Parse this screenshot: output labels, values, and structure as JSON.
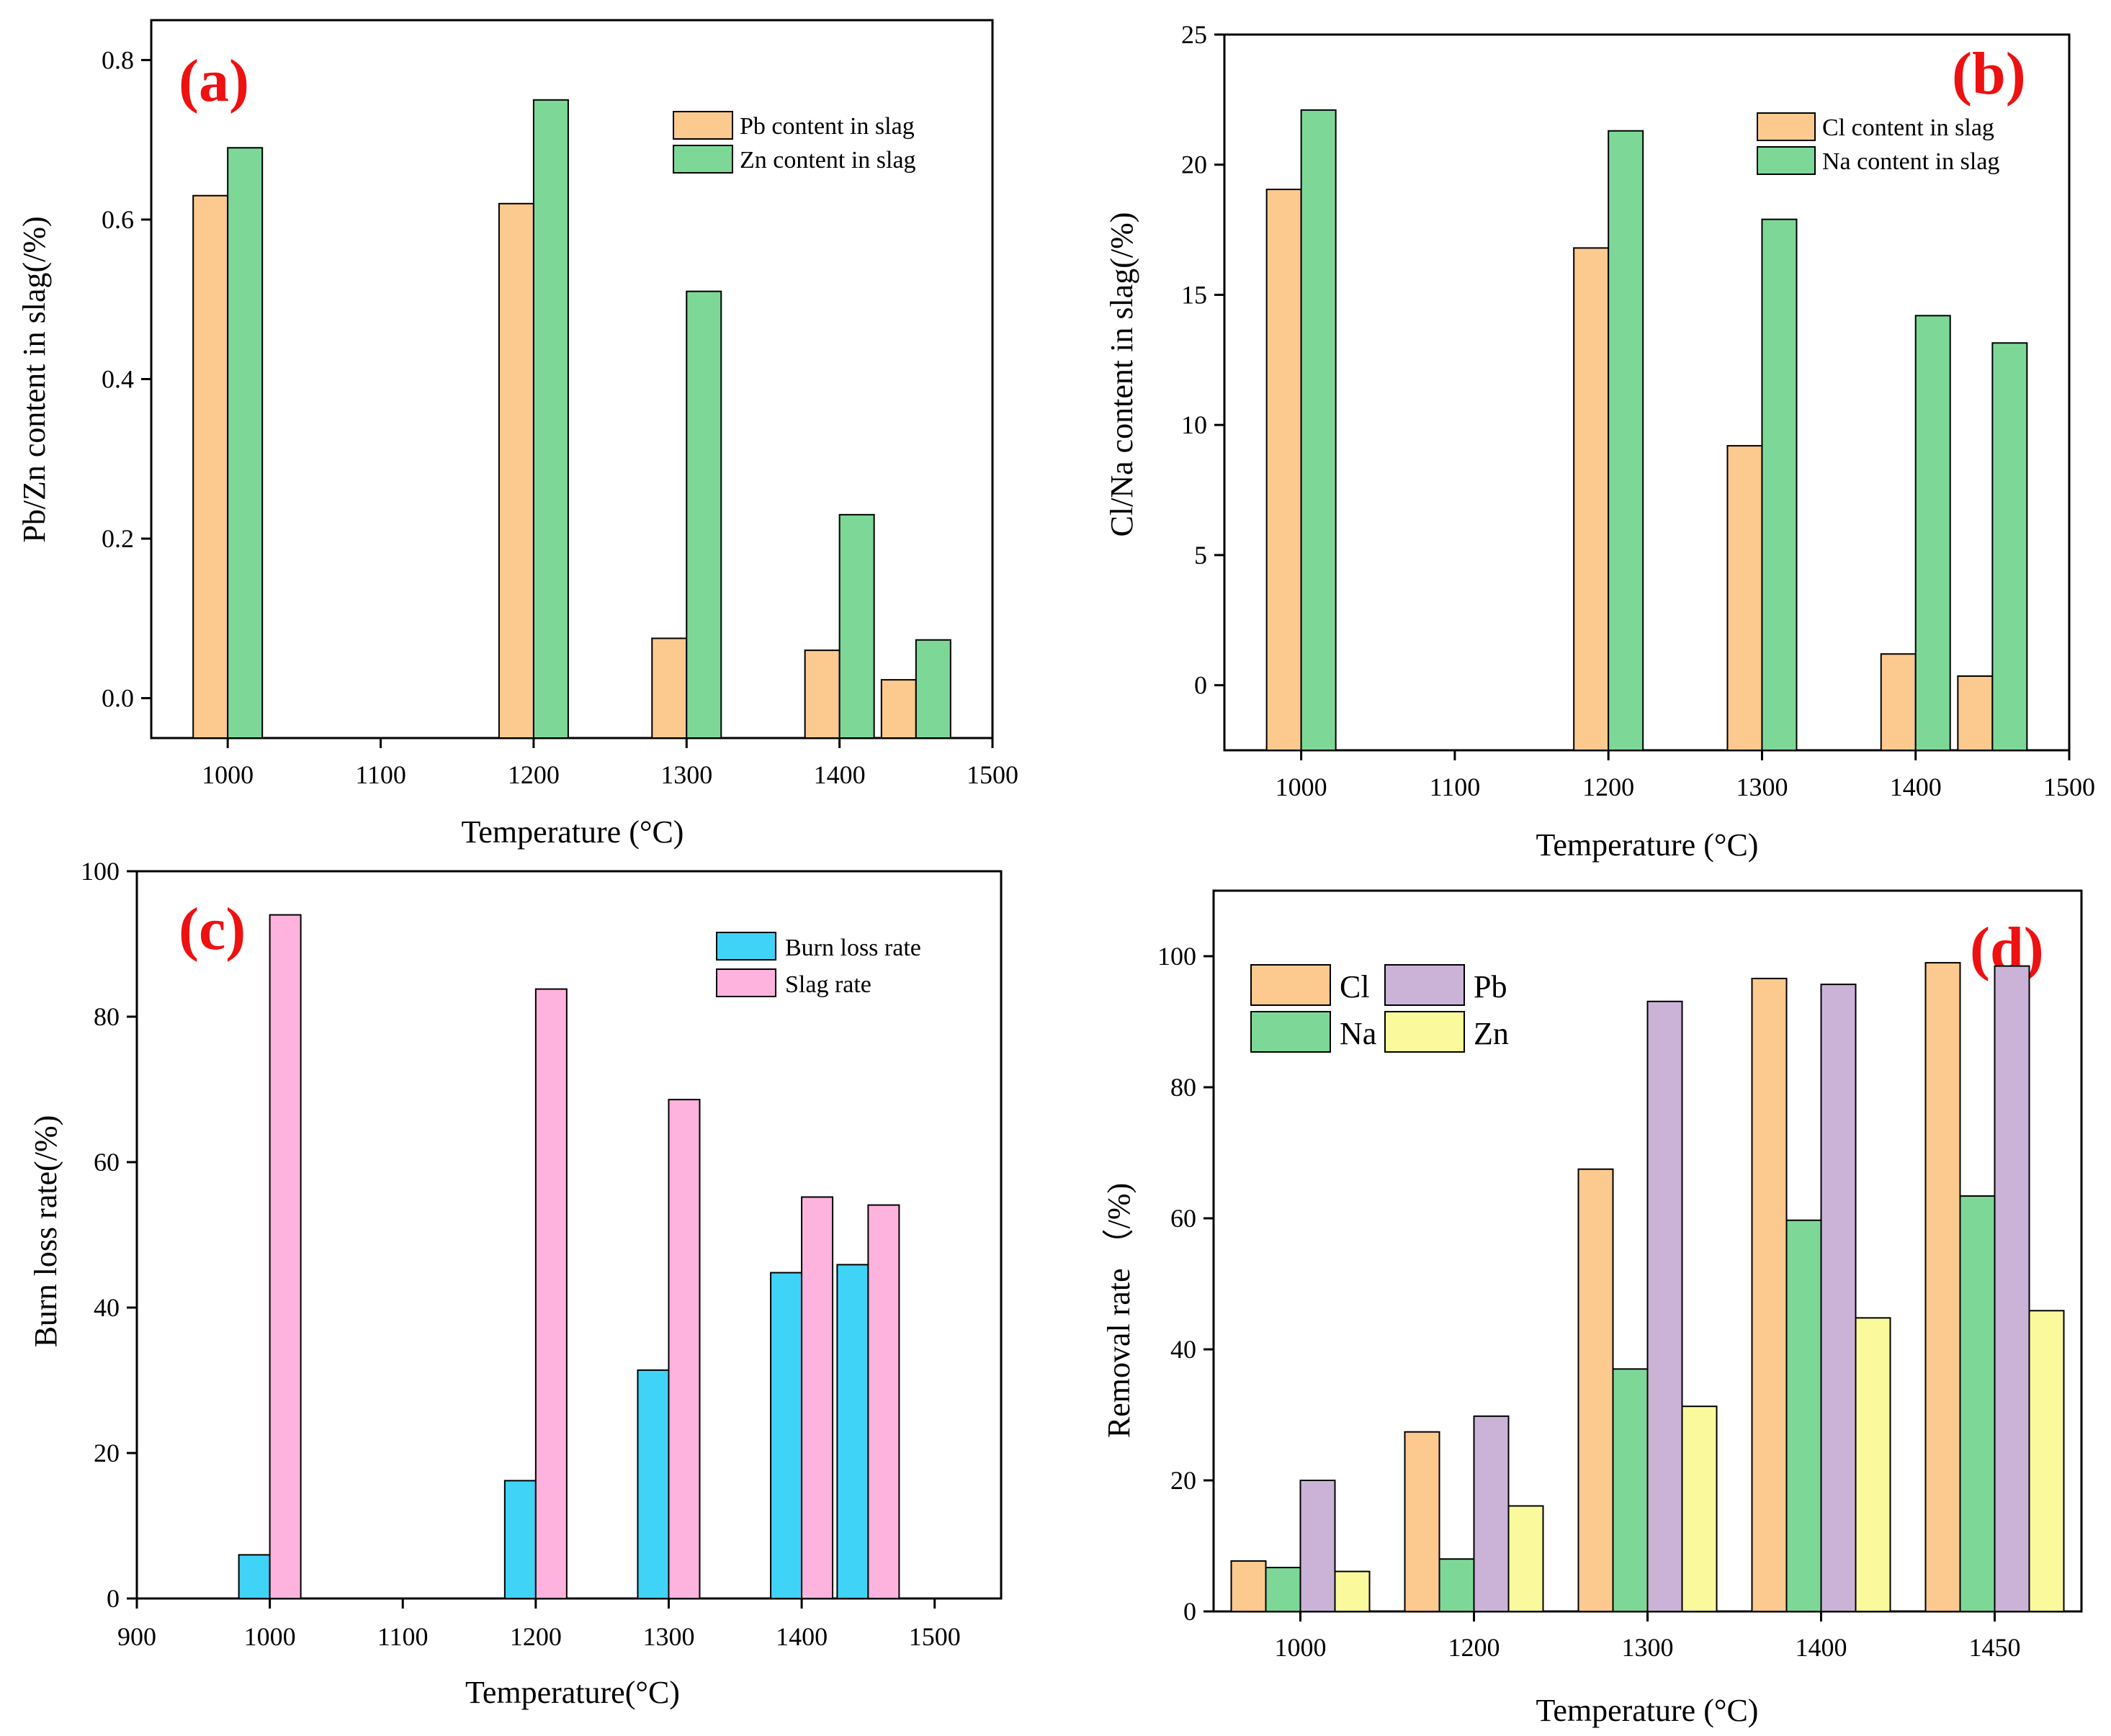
{
  "colors": {
    "orange": "#fcc98f",
    "green": "#7dd897",
    "cyan": "#3fd3f7",
    "pink": "#fdb3dd",
    "purple": "#cbb3d8",
    "yellow": "#fafa9c",
    "label_red": "#ee1111"
  },
  "chart_data": [
    {
      "panel": "(a)",
      "type": "bar",
      "xlabel": "Temperature (°C)",
      "ylabel": "Pb/Zn content in slag(/%)",
      "xlim": [
        950,
        1500
      ],
      "ylim": [
        -0.05,
        0.85
      ],
      "xticks": [
        1000,
        1100,
        1200,
        1300,
        1400,
        1500
      ],
      "yticks": [
        0.0,
        0.2,
        0.4,
        0.6,
        0.8
      ],
      "ytick_labels": [
        "0.0",
        "0.2",
        "0.4",
        "0.6",
        "0.8"
      ],
      "legend_position": "top-right",
      "categories": [
        1000,
        1200,
        1300,
        1400,
        1450
      ],
      "series": [
        {
          "name": "Pb content in slag",
          "color": "#fcc98f",
          "values": [
            0.63,
            0.62,
            0.075,
            0.06,
            0.023
          ]
        },
        {
          "name": "Zn content in slag",
          "color": "#7dd897",
          "values": [
            0.69,
            0.75,
            0.51,
            0.23,
            0.073
          ]
        }
      ]
    },
    {
      "panel": "(b)",
      "type": "bar",
      "xlabel": "Temperature (°C)",
      "ylabel": "Cl/Na content in slag(/%)",
      "xlim": [
        950,
        1500
      ],
      "ylim": [
        -2.5,
        25
      ],
      "xticks": [
        1000,
        1100,
        1200,
        1300,
        1400,
        1500
      ],
      "yticks": [
        0,
        5,
        10,
        15,
        20,
        25
      ],
      "ytick_labels": [
        "0",
        "5",
        "10",
        "15",
        "20",
        "25"
      ],
      "legend_position": "top-right",
      "categories": [
        1000,
        1200,
        1300,
        1400,
        1450
      ],
      "series": [
        {
          "name": "Cl content in slag",
          "color": "#fcc98f",
          "values": [
            19.05,
            16.8,
            9.2,
            1.2,
            0.35
          ]
        },
        {
          "name": "Na content in slag",
          "color": "#7dd897",
          "values": [
            22.1,
            21.3,
            17.9,
            14.2,
            13.15
          ]
        }
      ]
    },
    {
      "panel": "(c)",
      "type": "bar",
      "xlabel": "Temperature(°C)",
      "ylabel": "Burn loss rate(/%)",
      "xlim": [
        900,
        1550
      ],
      "ylim": [
        0,
        100
      ],
      "xticks": [
        900,
        1000,
        1100,
        1200,
        1300,
        1400,
        1500
      ],
      "yticks": [
        0,
        20,
        40,
        60,
        80,
        100
      ],
      "ytick_labels": [
        "0",
        "20",
        "40",
        "60",
        "80",
        "100"
      ],
      "legend_position": "top-right",
      "categories": [
        1000,
        1200,
        1300,
        1400,
        1450
      ],
      "series": [
        {
          "name": "Burn loss rate",
          "color": "#3fd3f7",
          "values": [
            6,
            16.2,
            31.4,
            44.8,
            45.9
          ]
        },
        {
          "name": "Slag rate",
          "color": "#fdb3dd",
          "values": [
            94,
            83.8,
            68.6,
            55.2,
            54.1
          ]
        }
      ]
    },
    {
      "panel": "(d)",
      "type": "bar",
      "xlabel": "Temperature (°C)",
      "ylabel": "Removal rate （/%)",
      "ylim": [
        0,
        110
      ],
      "yticks": [
        0,
        20,
        40,
        60,
        80,
        100
      ],
      "ytick_labels": [
        "0",
        "20",
        "40",
        "60",
        "80",
        "100"
      ],
      "legend_position": "top-left",
      "categories": [
        "1000",
        "1200",
        "1300",
        "1400",
        "1450"
      ],
      "series": [
        {
          "name": "Cl",
          "color": "#fcc98f",
          "values": [
            7.7,
            27.4,
            67.5,
            96.6,
            99.0
          ]
        },
        {
          "name": "Na",
          "color": "#7dd897",
          "values": [
            6.7,
            8.0,
            37.0,
            59.7,
            63.4
          ]
        },
        {
          "name": "Pb",
          "color": "#cbb3d8",
          "values": [
            20.0,
            29.8,
            93.1,
            95.7,
            98.5
          ]
        },
        {
          "name": "Zn",
          "color": "#fafa9c",
          "values": [
            6.1,
            16.1,
            31.3,
            44.8,
            45.9
          ]
        }
      ]
    }
  ]
}
